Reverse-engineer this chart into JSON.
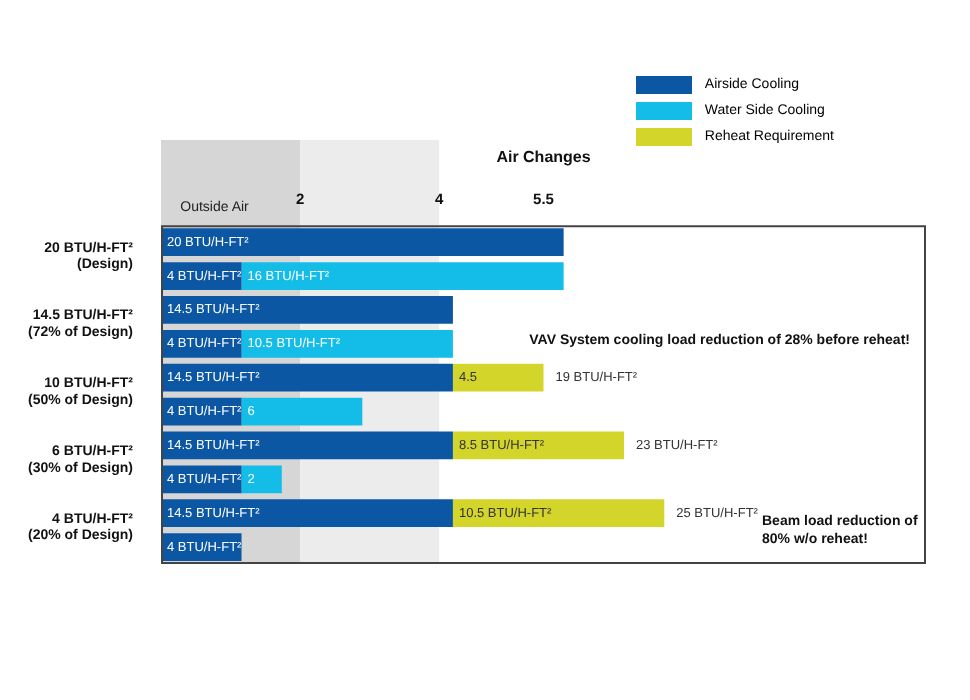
{
  "chart_data": {
    "type": "bar",
    "orientation": "horizontal",
    "stacked": true,
    "categories": [
      "20 BTU/H-FT²\n(Design)",
      null,
      "14.5 BTU/H-FT²\n(72% of Design)",
      null,
      "10 BTU/H-FT²\n(50% of Design)",
      null,
      "6 BTU/H-FT²\n(30% of Design)",
      null,
      "4 BTU/H-FT²\n(20% of Design)",
      null
    ],
    "series": [
      {
        "name": "Airside Cooling",
        "color": "#0b57a4",
        "values": [
          20,
          4,
          14.5,
          4,
          14.5,
          4,
          14.5,
          4,
          14.5,
          4
        ],
        "value_labels": [
          "20 BTU/H-FT²",
          "4 BTU/H-FT²",
          "14.5 BTU/H-FT²",
          "4 BTU/H-FT²",
          "14.5 BTU/H-FT²",
          "4 BTU/H-FT²",
          "14.5 BTU/H-FT²",
          "4 BTU/H-FT²",
          "14.5 BTU/H-FT²",
          "4 BTU/H-FT²"
        ]
      },
      {
        "name": "Water Side Cooling",
        "color": "#14bde8",
        "values": [
          null,
          16,
          null,
          10.5,
          null,
          6,
          null,
          2,
          null,
          null
        ],
        "value_labels": [
          null,
          "16 BTU/H-FT²",
          null,
          "10.5 BTU/H-FT²",
          null,
          "6",
          null,
          "2",
          null,
          null
        ]
      },
      {
        "name": "Reheat Requirement",
        "color": "#d3d52b",
        "values": [
          null,
          null,
          null,
          null,
          4.5,
          null,
          8.5,
          null,
          10.5,
          null
        ],
        "value_labels": [
          null,
          null,
          null,
          null,
          "4.5",
          null,
          "8.5 BTU/H-FT²",
          null,
          "10.5 BTU/H-FT²",
          null
        ]
      }
    ],
    "totals": [
      null,
      null,
      null,
      null,
      "19 BTU/H-FT²",
      null,
      "23 BTU/H-FT²",
      null,
      "25 BTU/H-FT²",
      null
    ],
    "xlim": [
      0,
      38
    ],
    "x2label": "Air Changes",
    "x2lim": [
      0,
      11
    ],
    "x2ticks": [
      2,
      4,
      5.5
    ],
    "bands": [
      {
        "axis": "x2",
        "from": 0,
        "to": 2,
        "label": "Outside Air",
        "color": "#d6d6d6"
      },
      {
        "axis": "x2",
        "from": 2,
        "to": 4,
        "label": null,
        "color": "#ececec"
      }
    ],
    "annotations": [
      "VAV System cooling load reduction of 28% before reheat!",
      "Beam load reduction of 80% w/o reheat!"
    ],
    "legend": "top right"
  }
}
